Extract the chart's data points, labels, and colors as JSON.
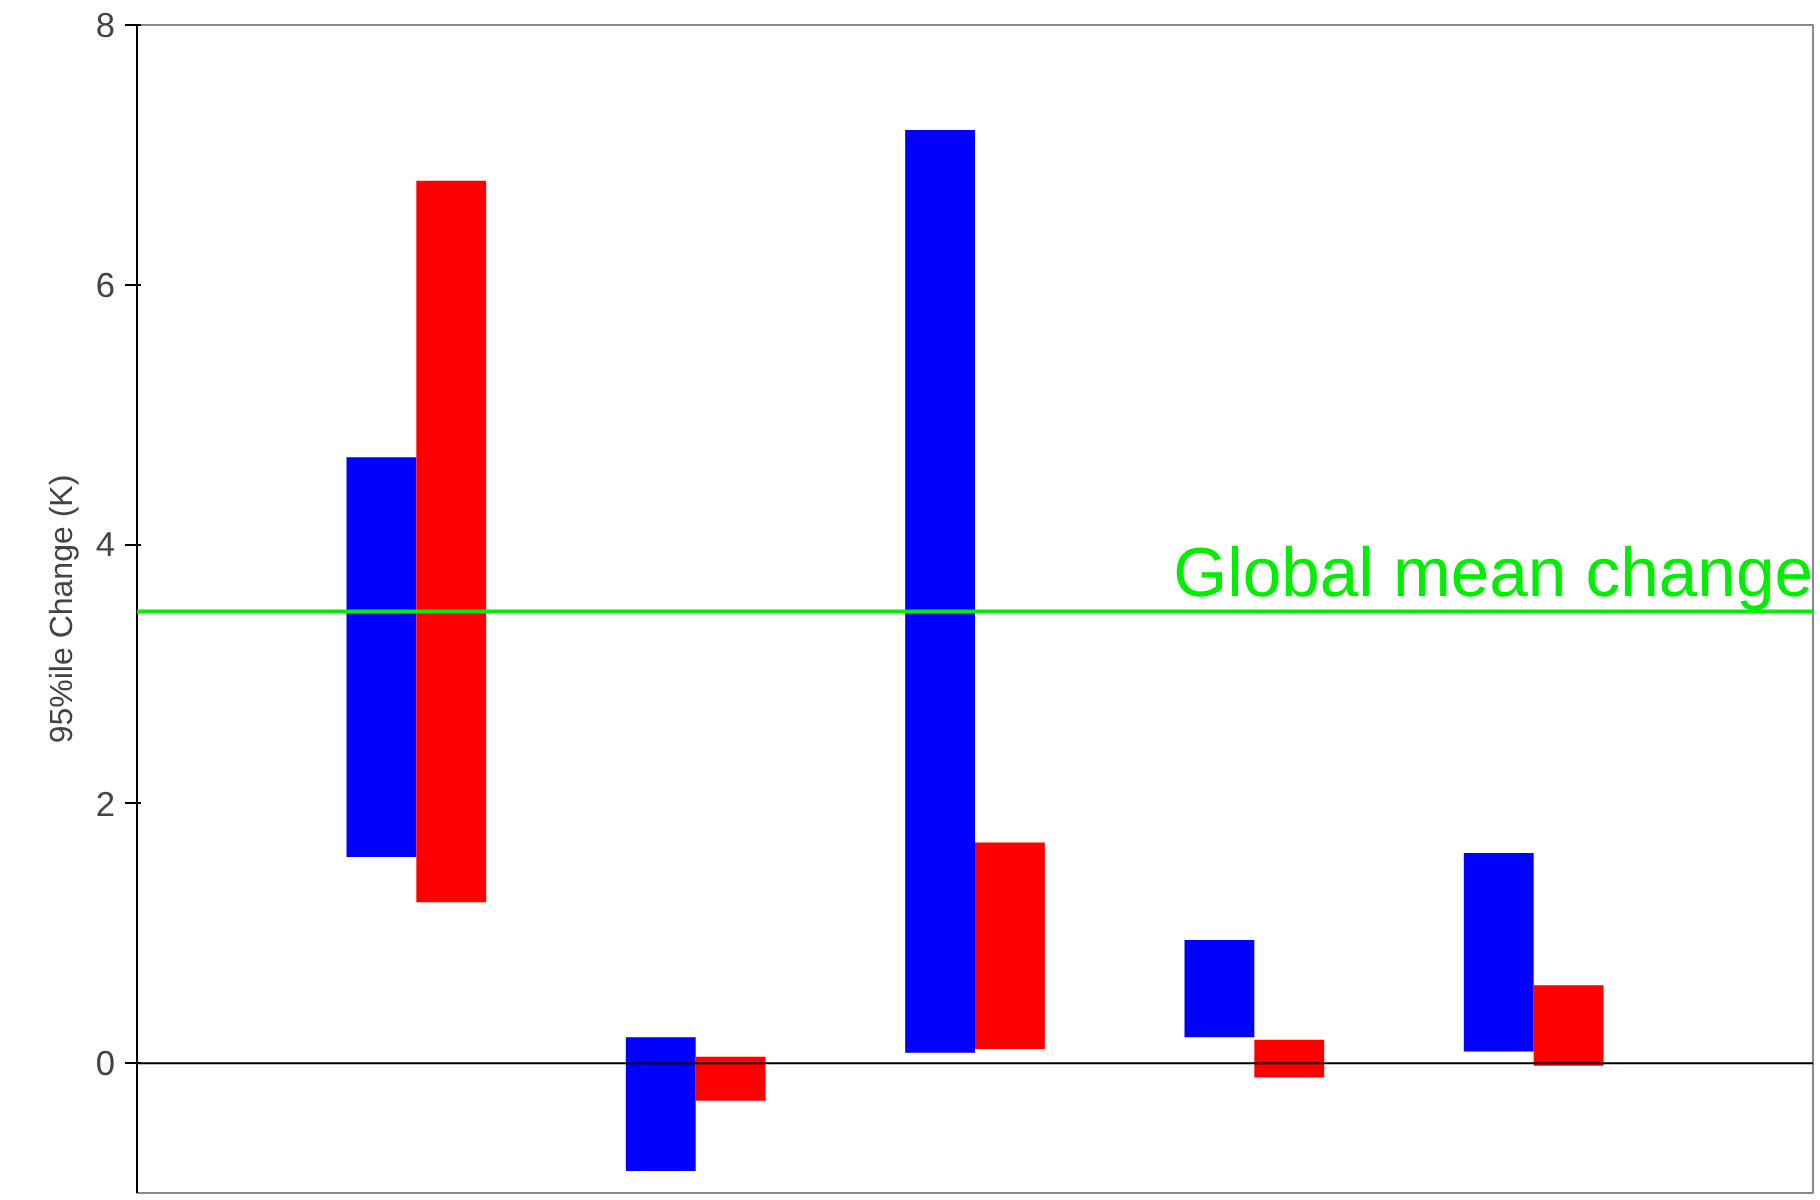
{
  "chart_data": {
    "type": "bar",
    "ylabel": "95%ile Change (K)",
    "categories": [
      null,
      null,
      null,
      null,
      null
    ],
    "series": [
      {
        "color": "#0000ff",
        "base": [
          1.59,
          -0.83,
          0.08,
          0.2,
          0.09
        ],
        "values": [
          3.08,
          1.03,
          7.11,
          0.75,
          1.53
        ]
      },
      {
        "color": "#ff0000",
        "base": [
          1.24,
          -0.29,
          0.11,
          -0.11,
          -0.02
        ],
        "values": [
          5.56,
          0.34,
          1.59,
          0.29,
          0.62
        ]
      }
    ],
    "ylim": [
      -1,
      8
    ],
    "yticks": [
      0,
      2,
      4,
      6,
      8
    ],
    "grid": false,
    "ref_lines": [
      {
        "axis": "y",
        "value": 0,
        "color": "#000000"
      },
      {
        "axis": "y",
        "value": 3.48,
        "label": "Global mean change",
        "color": "#00ee00"
      }
    ]
  }
}
